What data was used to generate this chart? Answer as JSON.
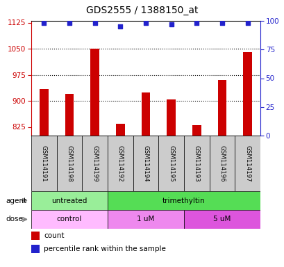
{
  "title": "GDS2555 / 1388150_at",
  "samples": [
    "GSM114191",
    "GSM114198",
    "GSM114199",
    "GSM114192",
    "GSM114194",
    "GSM114195",
    "GSM114193",
    "GSM114196",
    "GSM114197"
  ],
  "counts": [
    935,
    920,
    1050,
    835,
    925,
    905,
    830,
    960,
    1040
  ],
  "percentile_ranks": [
    98,
    98,
    98,
    95,
    98,
    97,
    98,
    98,
    98
  ],
  "ylim_left": [
    800,
    1130
  ],
  "yticks_left": [
    825,
    900,
    975,
    1050,
    1125
  ],
  "ylim_right": [
    0,
    100
  ],
  "yticks_right": [
    0,
    25,
    50,
    75,
    100
  ],
  "bar_color": "#cc0000",
  "dot_color": "#2222cc",
  "gridline_y": [
    900,
    975,
    1050
  ],
  "agent_labels": [
    {
      "text": "untreated",
      "start": 0,
      "end": 3,
      "color": "#99ee99"
    },
    {
      "text": "trimethyltin",
      "start": 3,
      "end": 9,
      "color": "#55dd55"
    }
  ],
  "dose_labels": [
    {
      "text": "control",
      "start": 0,
      "end": 3,
      "color": "#ffbbff"
    },
    {
      "text": "1 uM",
      "start": 3,
      "end": 6,
      "color": "#ee88ee"
    },
    {
      "text": "5 uM",
      "start": 6,
      "end": 9,
      "color": "#dd55dd"
    }
  ],
  "legend_count_color": "#cc0000",
  "legend_dot_color": "#2222cc",
  "left_axis_color": "#cc0000",
  "right_axis_color": "#2222cc"
}
